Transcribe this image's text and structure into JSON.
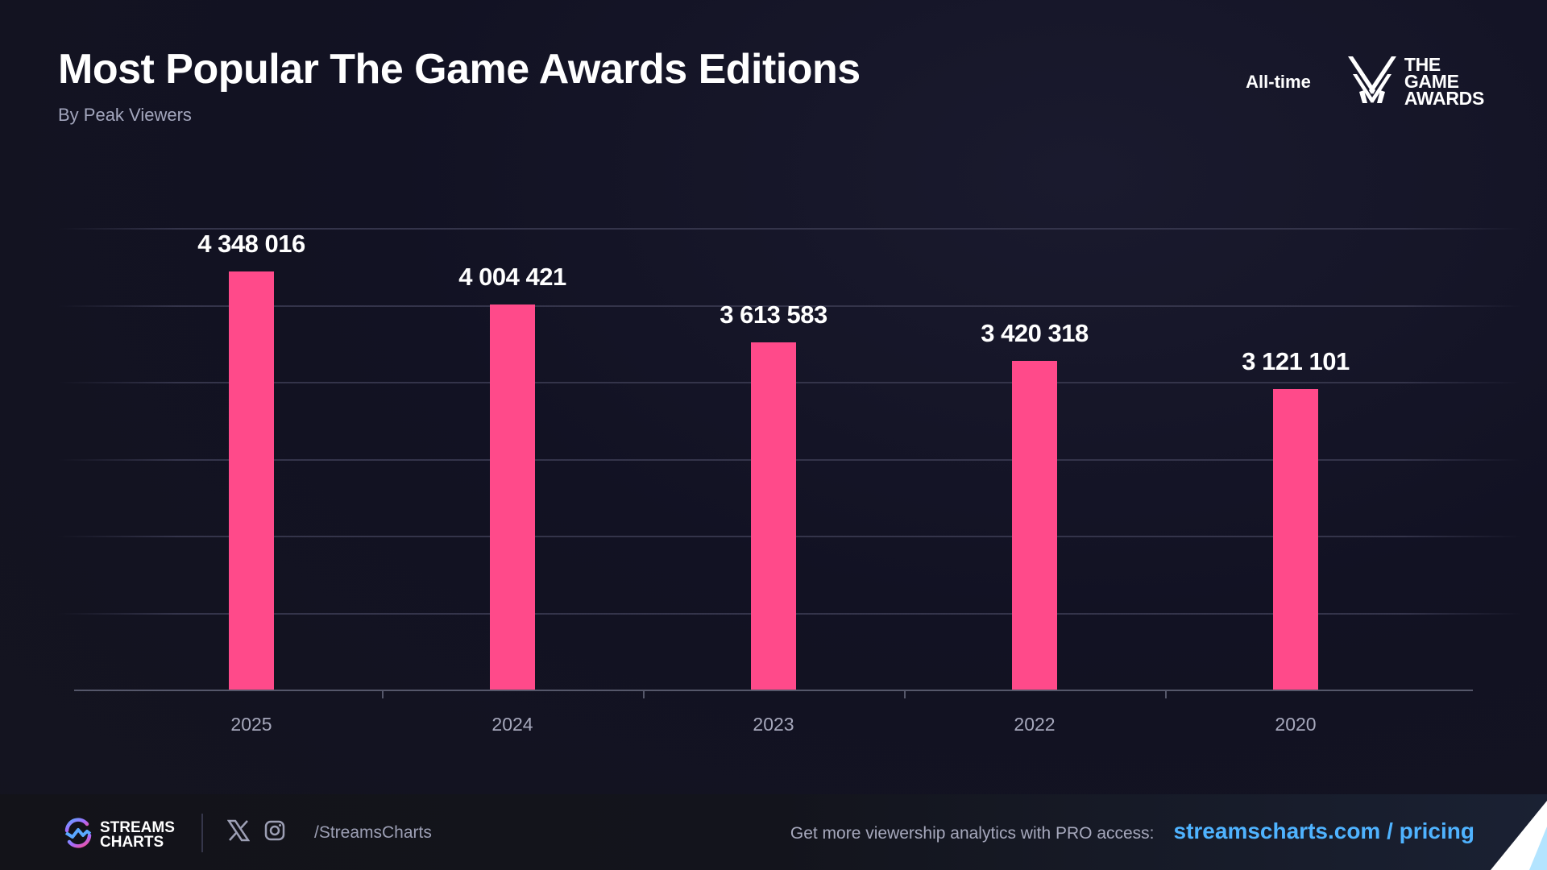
{
  "header": {
    "title": "Most Popular The Game Awards Editions",
    "subtitle": "By Peak Viewers",
    "period": "All-time",
    "brand_logo": {
      "icon": "the-game-awards-icon",
      "lines": [
        "THE",
        "GAME",
        "AWARDS"
      ]
    }
  },
  "colors": {
    "bar": "#ff4a8a",
    "background": "#121223",
    "link": "#4fb3ff",
    "axis_text": "#a6a8bc"
  },
  "chart_data": {
    "type": "bar",
    "title": "Most Popular The Game Awards Editions",
    "subtitle": "By Peak Viewers",
    "categories": [
      "2025",
      "2024",
      "2023",
      "2022",
      "2020"
    ],
    "values": [
      4348016,
      4004421,
      3613583,
      3420318,
      3121101
    ],
    "value_labels": [
      "4 348 016",
      "4 004 421",
      "3 613 583",
      "3 420 318",
      "3 121 101"
    ],
    "xlabel": "",
    "ylabel": "Peak Viewers",
    "ylim": [
      0,
      4800000
    ],
    "grid": true,
    "legend": "none",
    "series": [
      {
        "name": "Peak Viewers",
        "values": [
          4348016,
          4004421,
          3613583,
          3420318,
          3121101
        ]
      }
    ]
  },
  "footer": {
    "brand": [
      "STREAMS",
      "CHARTS"
    ],
    "social_icons": [
      "x-icon",
      "instagram-icon"
    ],
    "handle": "/StreamsCharts",
    "promo_text": "Get more viewership analytics with PRO access:",
    "promo_link": "streamscharts.com / pricing"
  }
}
